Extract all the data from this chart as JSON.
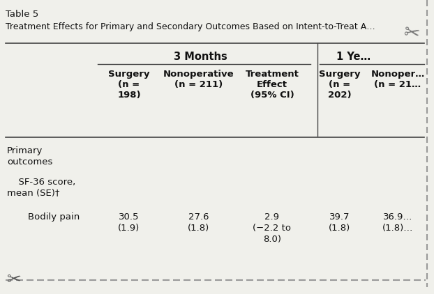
{
  "table_number": "Table 5",
  "title": "Treatment Effects for Primary and Secondary Outcomes Based on Intent-to-Treat A…",
  "bg_color": "#f0f0eb",
  "text_color": "#111111",
  "line_color": "#444444",
  "dashed_line_color": "#999999",
  "figsize": [
    6.22,
    4.22
  ],
  "dpi": 100,
  "col_headers_line1": [
    "Surgery",
    "Nonoperative",
    "Treatment",
    "Surgery",
    "Nonoper…"
  ],
  "col_headers_line2": [
    "(n =",
    "(n = 211)",
    "Effect",
    "(n =",
    "(n = 21…"
  ],
  "col_headers_line3": [
    "198)",
    "",
    "(95% CI)",
    "202)",
    ""
  ],
  "period1_label": "3 Months",
  "period2_label": "1 Ye…",
  "row1_label1": "Primary",
  "row1_label2": "outcomes",
  "row2_label1": "  SF-36 score,",
  "row2_label2": "mean (SE)†",
  "row3_label": "    Bodily pain",
  "row3_val1": "30.5",
  "row3_val1b": "(1.9)",
  "row3_val2": "27.6",
  "row3_val2b": "(1.8)",
  "row3_val3a": "2.9",
  "row3_val3b": "(−2.2 to",
  "row3_val3c": "8.0)",
  "row3_val4": "39.7",
  "row3_val4b": "(1.8)",
  "row3_val5": "36.9…",
  "row3_val5b": "(1.8)…"
}
